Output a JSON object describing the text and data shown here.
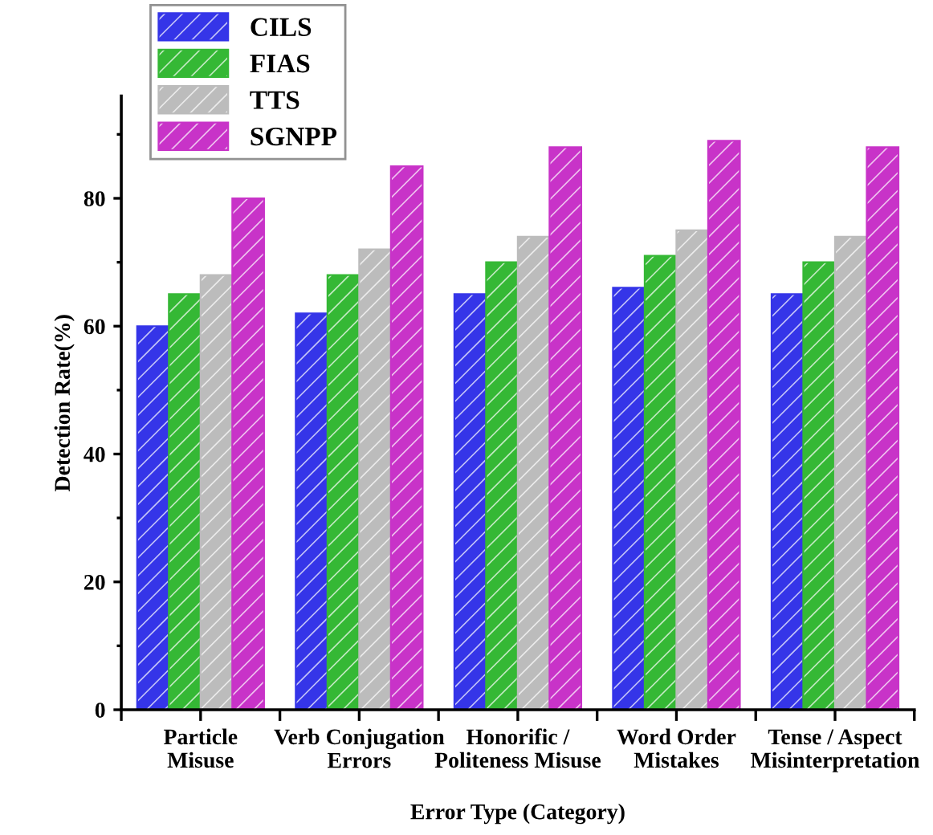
{
  "chart_data": {
    "type": "bar",
    "xlabel": "Error Type (Category)",
    "ylabel": "Detection Rate(%)",
    "categories": [
      "Particle\nMisuse",
      "Verb Conjugation\nErrors",
      "Honorific /\nPoliteness Misuse",
      "Word Order\nMistakes",
      "Tense / Aspect\nMisinterpretation"
    ],
    "series": [
      {
        "name": "CILS",
        "color": "#3535e8",
        "values": [
          60,
          62,
          65,
          66,
          65
        ]
      },
      {
        "name": "FIAS",
        "color": "#35b835",
        "values": [
          65,
          68,
          70,
          71,
          70
        ]
      },
      {
        "name": "TTS",
        "color": "#bcbcbc",
        "values": [
          68,
          72,
          74,
          75,
          74
        ]
      },
      {
        "name": "SGNPP",
        "color": "#c833c8",
        "values": [
          80,
          85,
          88,
          89,
          88
        ]
      }
    ],
    "ylim": [
      0,
      96
    ],
    "yticks": [
      0,
      20,
      40,
      60,
      80
    ],
    "grid": false,
    "legend": "top left"
  }
}
